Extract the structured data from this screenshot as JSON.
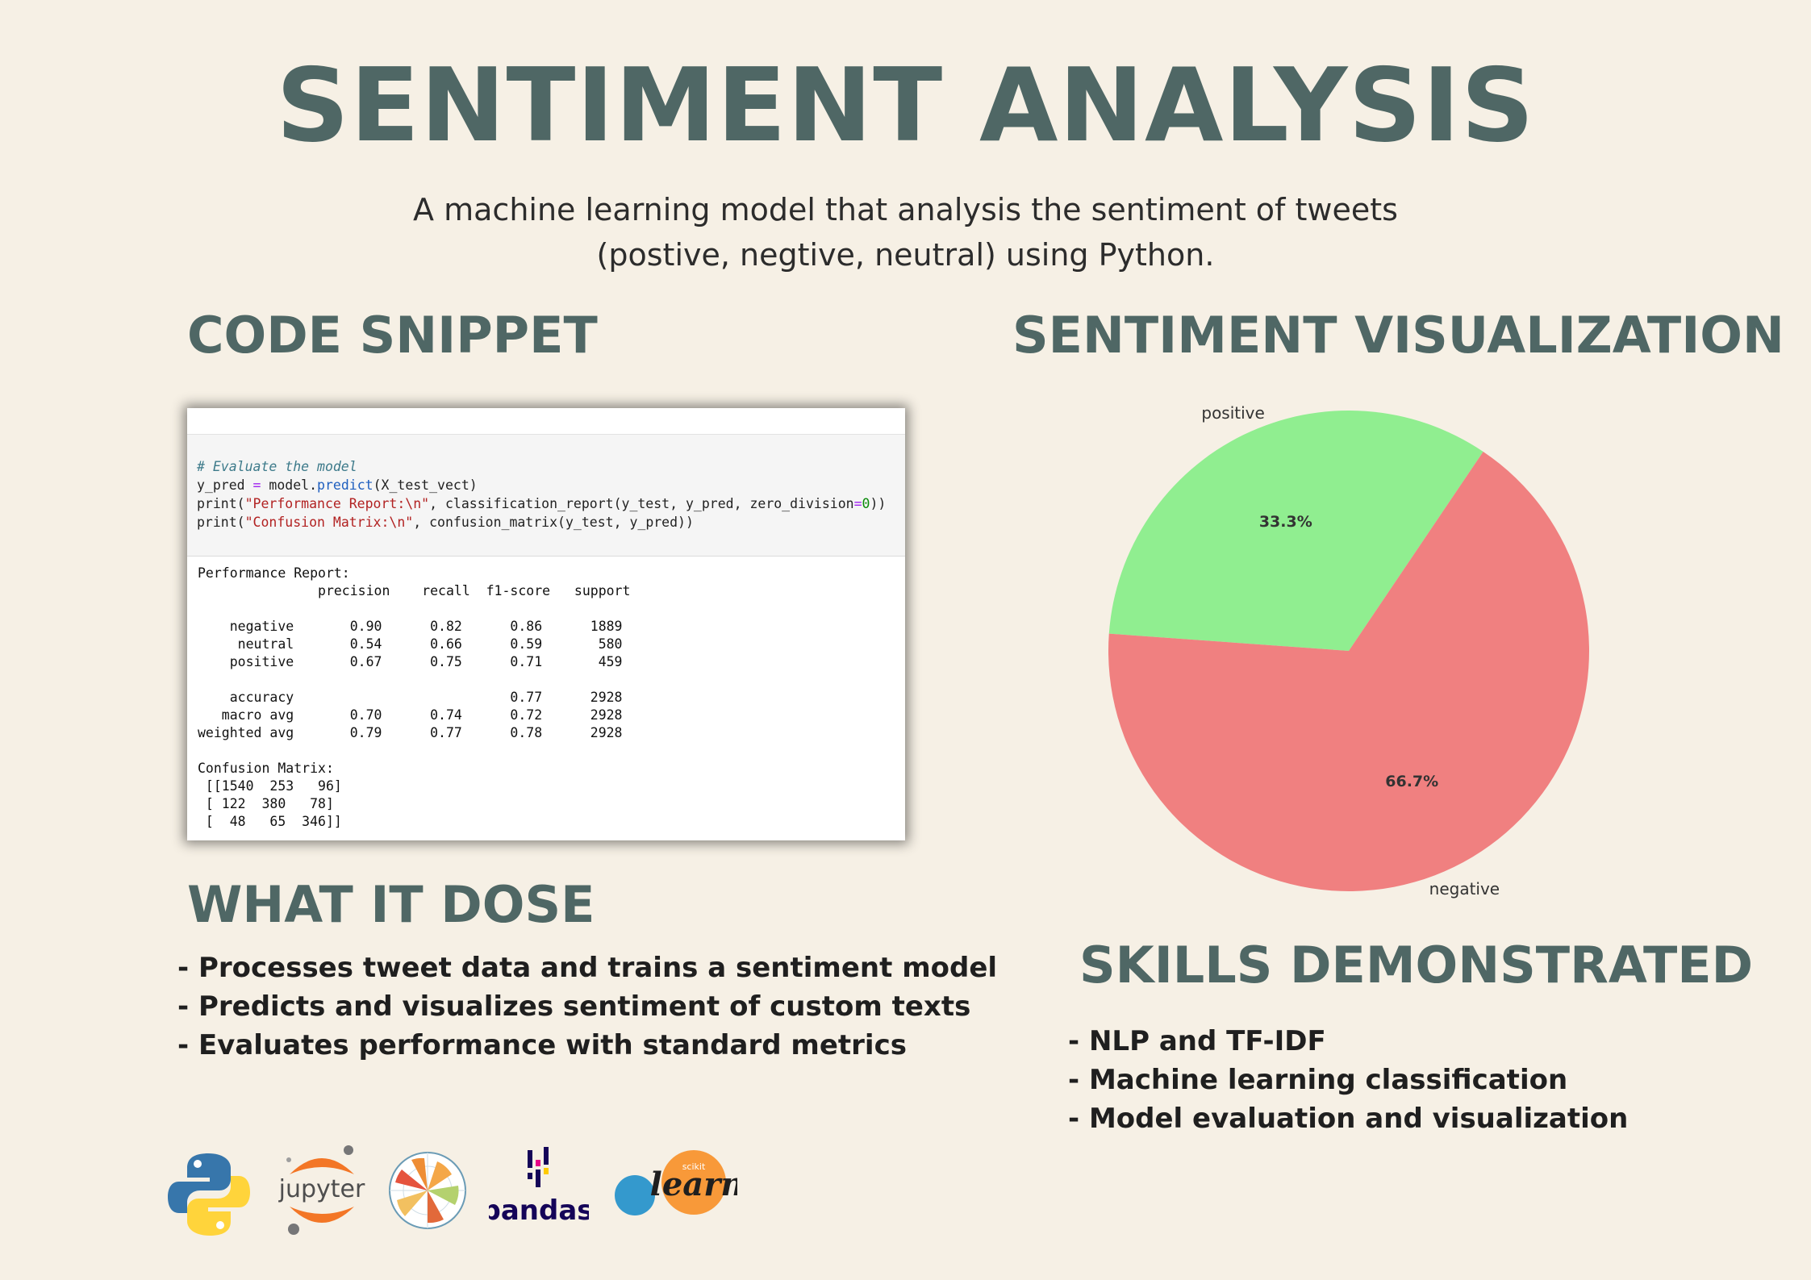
{
  "header": {
    "title": "SENTIMENT ANALYSIS",
    "subtitle_line1": "A machine learning model that analysis the sentiment of tweets",
    "subtitle_line2": "(postive, negtive, neutral) using Python."
  },
  "sections": {
    "code_heading": "CODE SNIPPET",
    "viz_heading": "SENTIMENT VISUALIZATION",
    "does_heading": "WHAT IT DOSE",
    "skills_heading": "SKILLS DEMONSTRATED"
  },
  "code": {
    "comment": "# Evaluate the model",
    "line2_a": "y_pred ",
    "line2_op": "=",
    "line2_b": " model.",
    "line2_fn": "predict",
    "line2_c": "(X_test_vect)",
    "line3_a": "print(",
    "line3_str": "\"Performance Report:\\n\"",
    "line3_b": ", classification_report(y_test, y_pred, zero_division",
    "line3_op": "=",
    "line3_num": "0",
    "line3_c": "))",
    "line4_a": "print(",
    "line4_str": "\"Confusion Matrix:\\n\"",
    "line4_b": ", confusion_matrix(y_test, y_pred))",
    "output": "Performance Report:\n               precision    recall  f1-score   support\n\n    negative       0.90      0.82      0.86      1889\n     neutral       0.54      0.66      0.59       580\n    positive       0.67      0.75      0.71       459\n\n    accuracy                           0.77      2928\n   macro avg       0.70      0.74      0.72      2928\nweighted avg       0.79      0.77      0.78      2928\n\nConfusion Matrix:\n [[1540  253   96]\n [ 122  380   78]\n [  48   65  346]]"
  },
  "what_it_does": [
    "- Processes tweet data and trains a sentiment model",
    "- Predicts and visualizes sentiment of custom texts",
    "- Evaluates performance with standard metrics"
  ],
  "skills": [
    "- NLP and TF-IDF",
    "- Machine learning classification",
    "- Model evaluation and visualization"
  ],
  "logos": {
    "jupyter_text": "jupyter",
    "pandas_text": "pandas",
    "sklearn_small": "scikit",
    "sklearn_text": "learn"
  },
  "chart_data": {
    "type": "pie",
    "labels": [
      "positive",
      "negative"
    ],
    "values": [
      33.3,
      66.7
    ],
    "autopct_labels": [
      "33.3%",
      "66.7%"
    ],
    "colors": [
      "#90ee90",
      "#f08080"
    ]
  }
}
